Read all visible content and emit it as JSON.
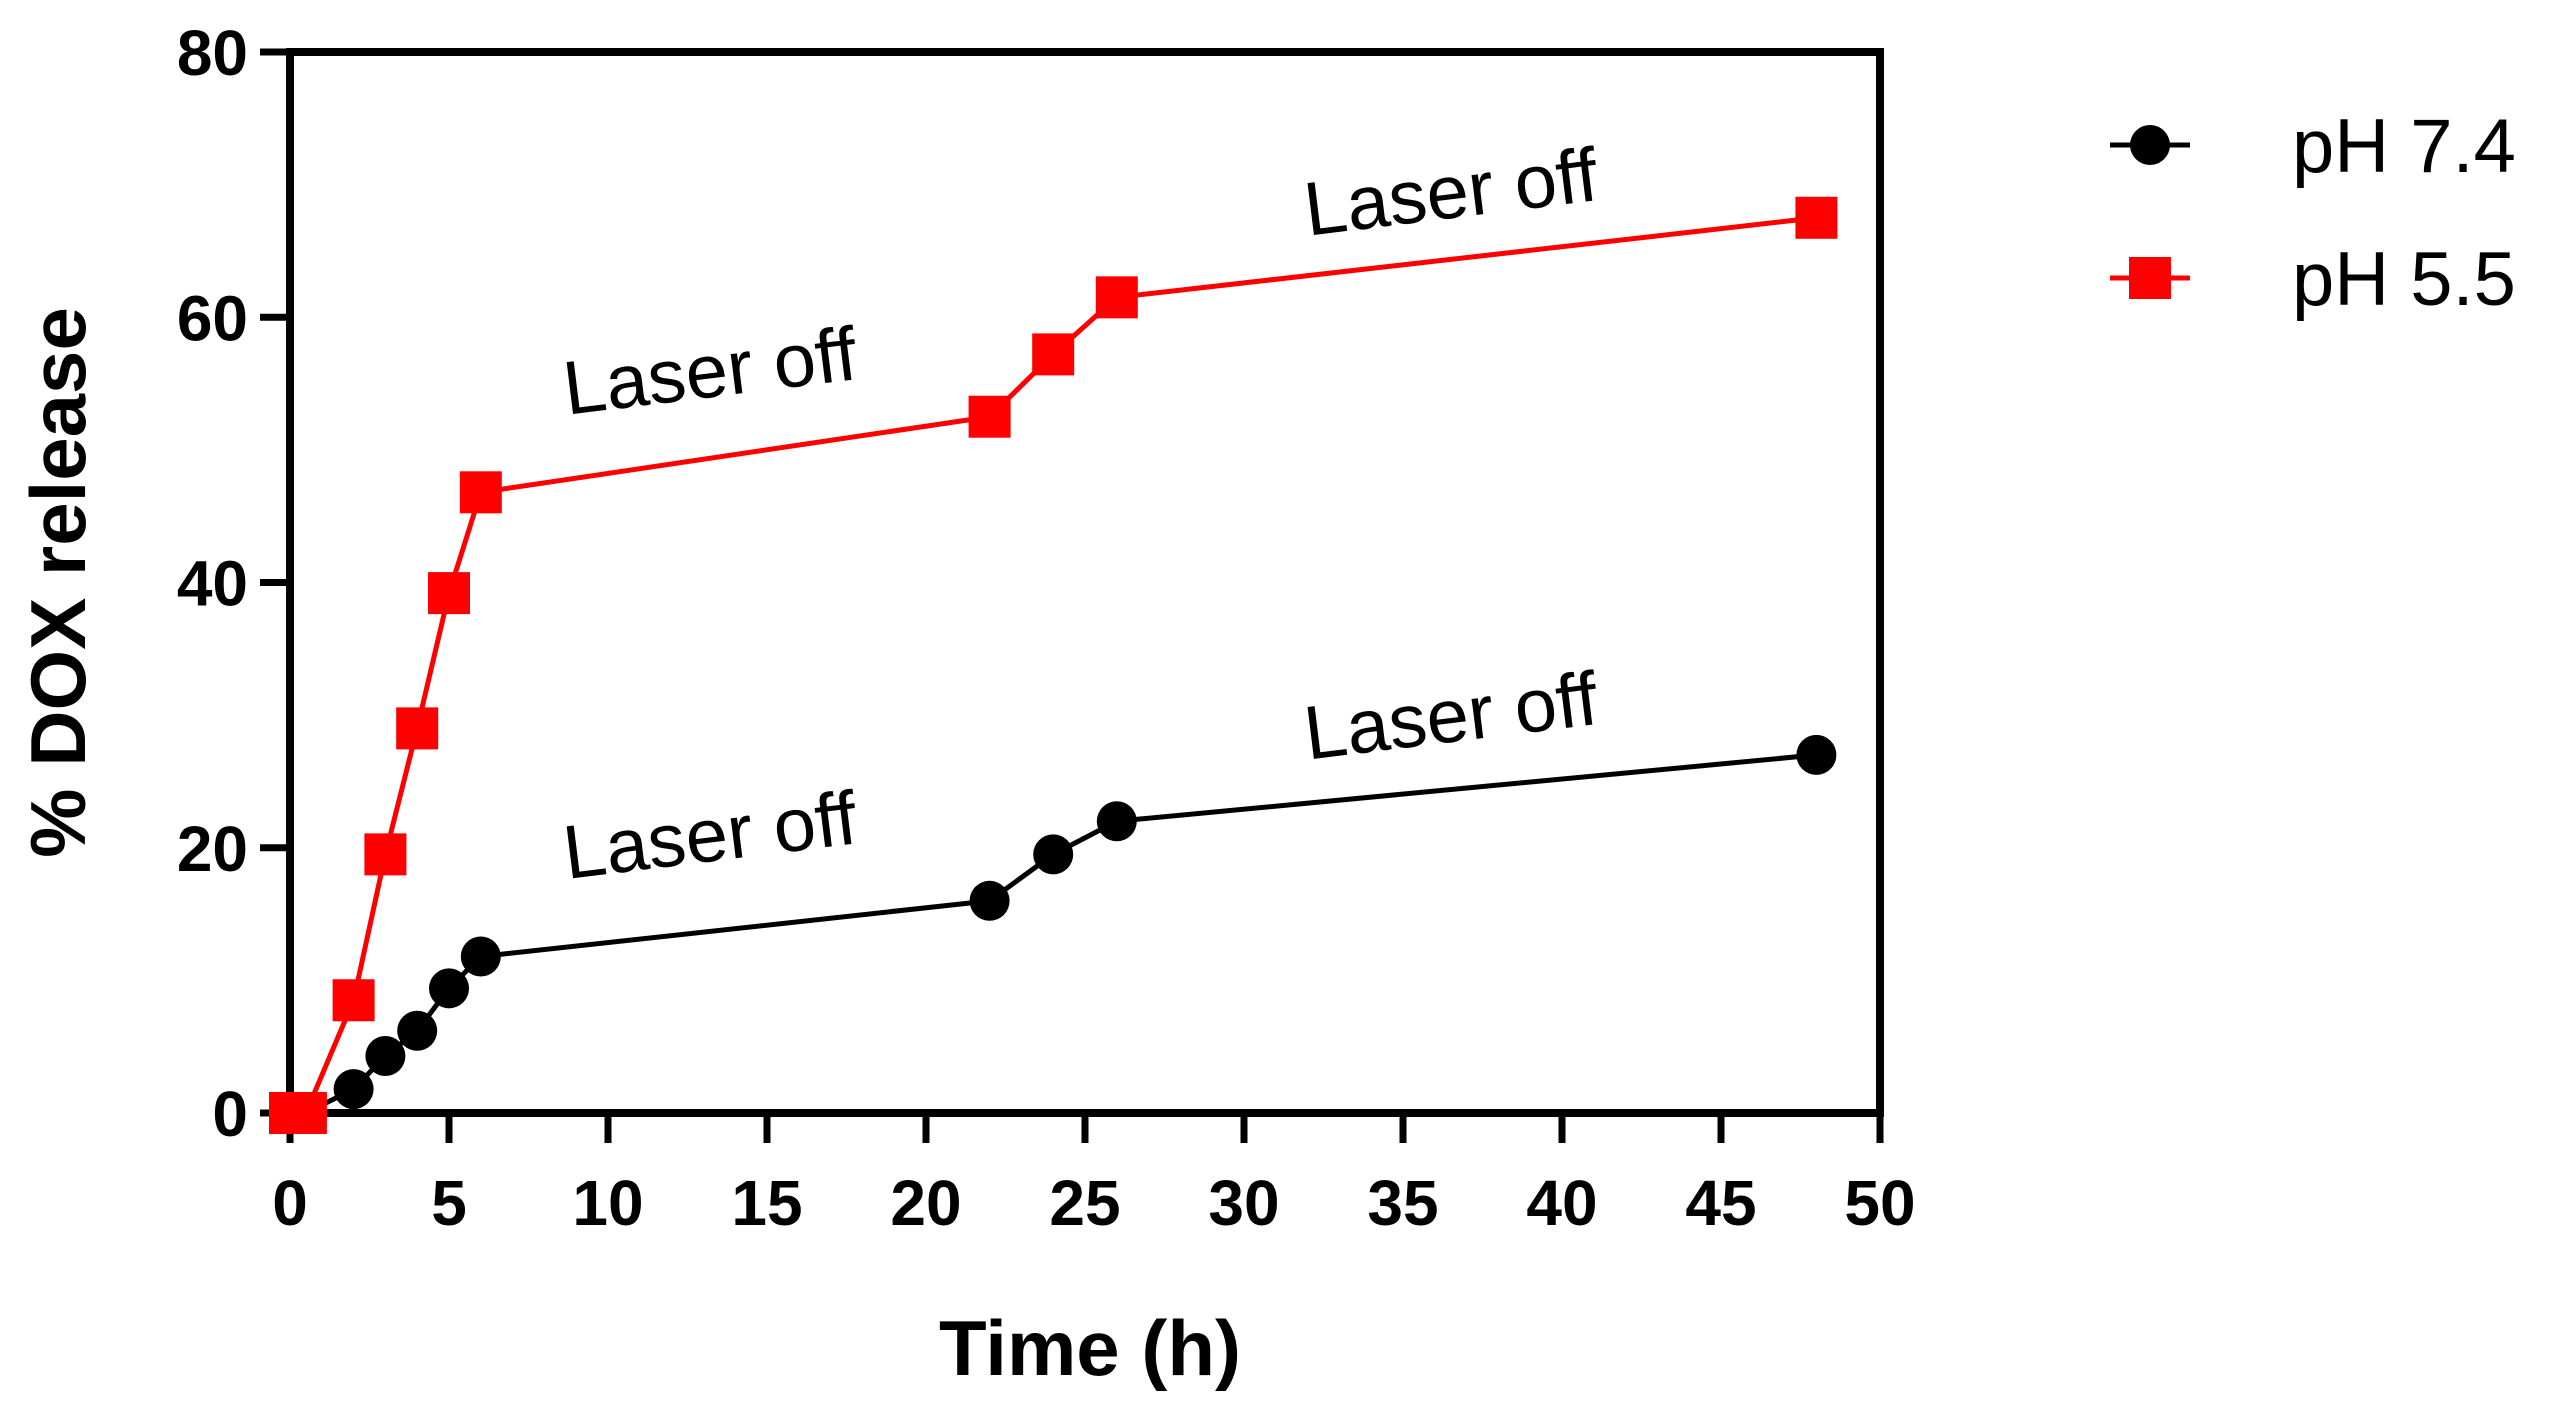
{
  "chart_data": {
    "type": "line",
    "title": "",
    "xlabel": "Time (h)",
    "ylabel": "% DOX release",
    "xlim": [
      0,
      50
    ],
    "ylim": [
      0,
      80
    ],
    "xticks": [
      0,
      5,
      10,
      15,
      20,
      25,
      30,
      35,
      40,
      45,
      50
    ],
    "yticks": [
      0,
      20,
      40,
      60,
      80
    ],
    "grid": false,
    "legend_position": "top-right outside",
    "series": [
      {
        "name": "pH 7.4",
        "color": "#000000",
        "marker": "circle",
        "x": [
          0,
          0.5,
          2,
          3,
          4,
          5,
          6,
          22,
          24,
          26,
          48
        ],
        "y": [
          0,
          0,
          1.8,
          4.3,
          6.2,
          9.4,
          11.8,
          16.0,
          19.5,
          22.0,
          27.0
        ]
      },
      {
        "name": "pH 5.5",
        "color": "#ff0000",
        "marker": "square",
        "x": [
          0,
          0.5,
          2,
          3,
          4,
          5,
          6,
          22,
          24,
          26,
          48
        ],
        "y": [
          0,
          0,
          8.5,
          19.5,
          29.0,
          39.2,
          46.8,
          52.5,
          57.2,
          61.5,
          67.5
        ]
      }
    ],
    "annotations": [
      {
        "text": "Laser off",
        "x": 13.3,
        "y": 54,
        "rotation": -7
      },
      {
        "text": "Laser off",
        "x": 36.6,
        "y": 67.5,
        "rotation": -7
      },
      {
        "text": "Laser off",
        "x": 13.3,
        "y": 19,
        "rotation": -7
      },
      {
        "text": "Laser off",
        "x": 36.6,
        "y": 28,
        "rotation": -7
      }
    ]
  }
}
